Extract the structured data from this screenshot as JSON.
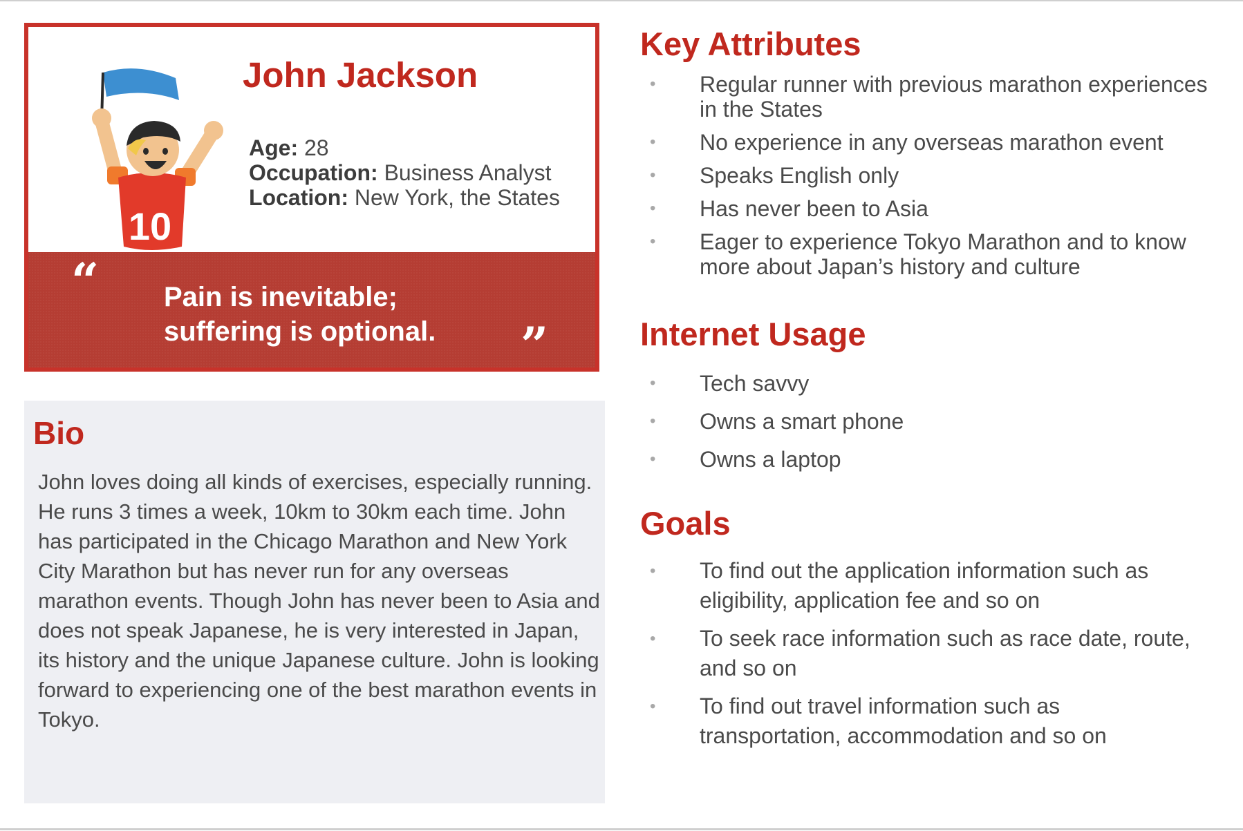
{
  "profile": {
    "name": "John Jackson",
    "age_label": "Age:",
    "age_value": "28",
    "occupation_label": "Occupation:",
    "occupation_value": "Business Analyst",
    "location_label": "Location:",
    "location_value": "New York, the States",
    "avatar_jersey_number": "10"
  },
  "quote": {
    "open_mark": "“",
    "close_mark": "”",
    "line1": "Pain is inevitable;",
    "line2": "suffering is optional."
  },
  "bio": {
    "title": "Bio",
    "text": "John loves doing all kinds of exercises, especially running. He runs 3 times a week, 10km to 30km each time. John has participated in the Chicago Marathon and New York City Marathon but has never run for any overseas marathon events. Though John has never been to Asia and does not speak Japanese, he is very interested in Japan, its history and the unique Japanese culture. John is looking forward to experiencing one of the best marathon events in Tokyo."
  },
  "key_attributes": {
    "title": "Key Attributes",
    "items": [
      "Regular runner with previous marathon experiences in the States",
      "No experience in any overseas marathon event",
      "Speaks English only",
      "Has never been to Asia",
      "Eager to experience Tokyo Marathon and to know more about Japan’s history and culture"
    ]
  },
  "internet_usage": {
    "title": "Internet Usage",
    "items": [
      "Tech savvy",
      "Owns a smart phone",
      "Owns a laptop"
    ]
  },
  "goals": {
    "title": "Goals",
    "items": [
      "To find out the application information such as eligibility, application fee and so on",
      "To seek race information such as race date, route, and so on",
      "To find out travel information such as transportation, accommodation and so on"
    ]
  },
  "colors": {
    "accent": "#c0281e",
    "card_border": "#c8322a",
    "quote_band": "#b53d33",
    "bio_bg": "#eeeff3",
    "text": "#4a4a4a"
  }
}
